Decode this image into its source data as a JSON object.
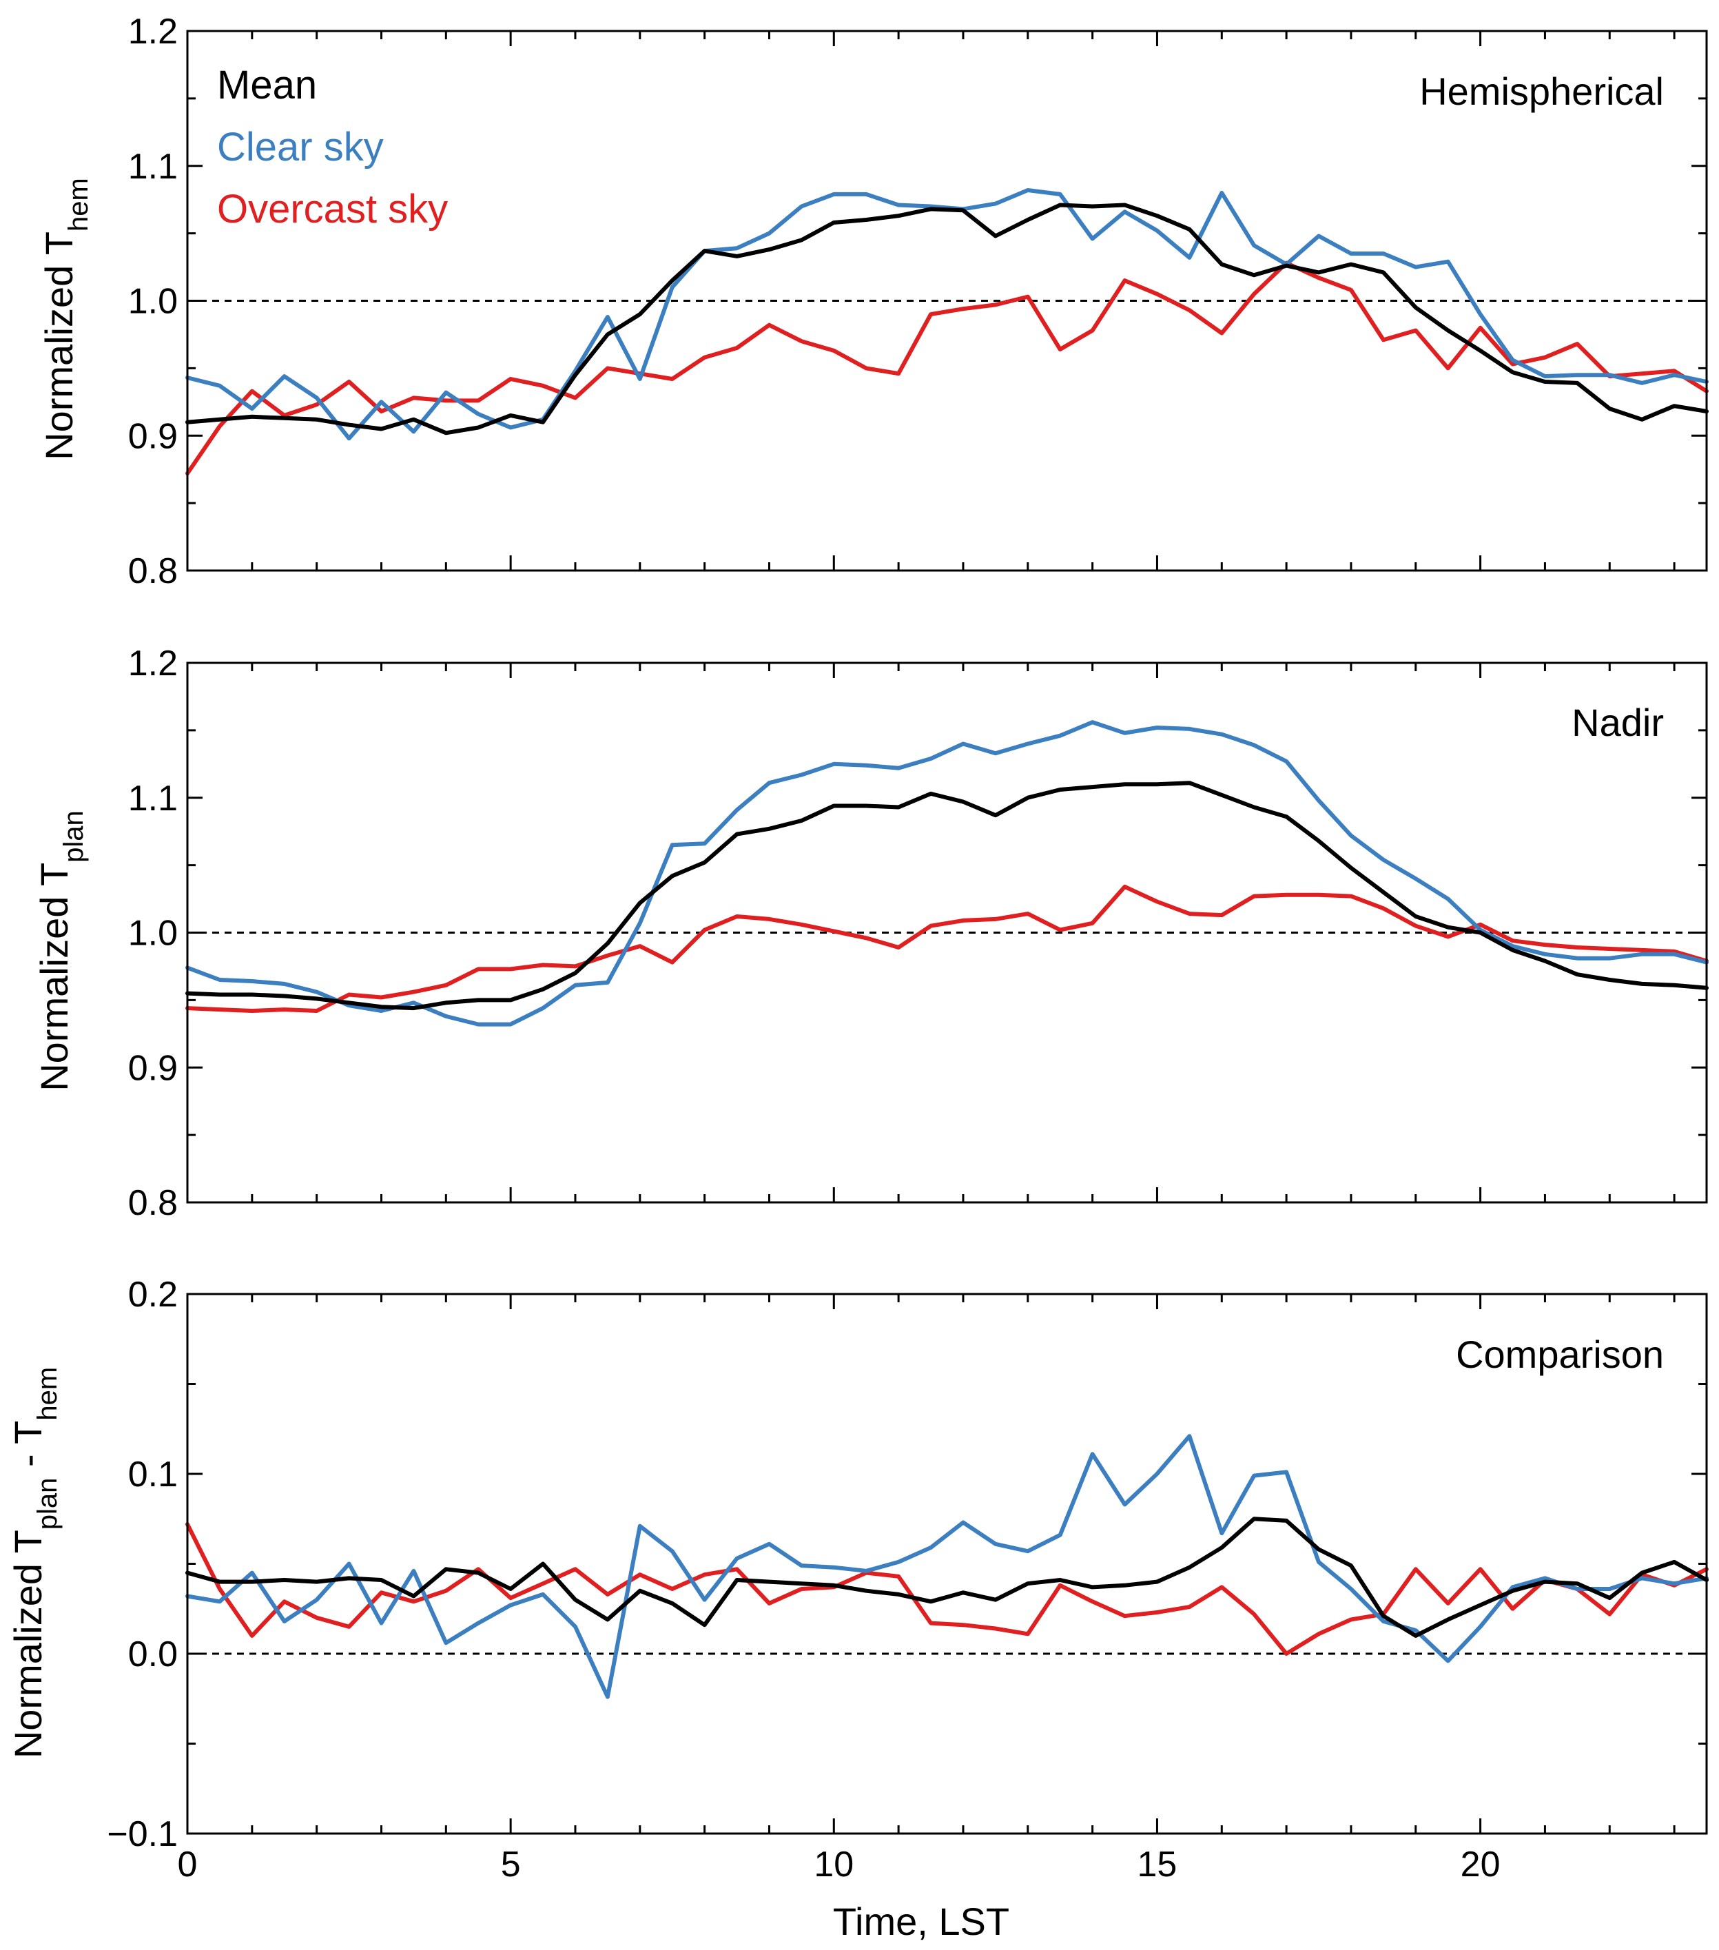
{
  "chart_data": [
    {
      "type": "line",
      "panel_label": "Hemispherical",
      "ylabel": "Normalized T",
      "ylabel_sub": "hem",
      "ylabel_suffix": "",
      "ylabel_sub2": "",
      "xlabel": "",
      "xlim": [
        0,
        23.5
      ],
      "ylim": [
        0.8,
        1.2
      ],
      "yticks": [
        0.8,
        0.9,
        1.0,
        1.1,
        1.2
      ],
      "ytick_labels": [
        "0.8",
        "0.9",
        "1.0",
        "1.1",
        "1.2"
      ],
      "xticks": [
        0,
        5,
        10,
        15,
        20
      ],
      "xtick_labels": [],
      "reference_line": 1.0,
      "legend_placement": "top-left",
      "series": [
        {
          "name": "Mean",
          "color": "#000000",
          "values": [
            0.91,
            0.912,
            0.914,
            0.913,
            0.912,
            0.908,
            0.905,
            0.912,
            0.902,
            0.906,
            0.915,
            0.91,
            0.945,
            0.975,
            0.99,
            1.015,
            1.037,
            1.033,
            1.038,
            1.045,
            1.058,
            1.06,
            1.063,
            1.068,
            1.067,
            1.048,
            1.06,
            1.071,
            1.07,
            1.071,
            1.063,
            1.053,
            1.027,
            1.019,
            1.026,
            1.021,
            1.027,
            1.021,
            0.995,
            0.978,
            0.963,
            0.947,
            0.94,
            0.939,
            0.92,
            0.912,
            0.922,
            0.918
          ]
        },
        {
          "name": "Clear sky",
          "color": "#3b7fc0",
          "values": [
            0.943,
            0.937,
            0.92,
            0.944,
            0.928,
            0.898,
            0.925,
            0.903,
            0.932,
            0.916,
            0.906,
            0.912,
            0.948,
            0.988,
            0.942,
            1.01,
            1.037,
            1.039,
            1.05,
            1.07,
            1.079,
            1.079,
            1.071,
            1.07,
            1.068,
            1.072,
            1.082,
            1.079,
            1.046,
            1.066,
            1.052,
            1.032,
            1.08,
            1.041,
            1.027,
            1.048,
            1.035,
            1.035,
            1.025,
            1.029,
            0.99,
            0.956,
            0.944,
            0.945,
            0.945,
            0.939,
            0.945,
            0.94
          ]
        },
        {
          "name": "Overcast sky",
          "color": "#e02020",
          "values": [
            0.872,
            0.907,
            0.933,
            0.915,
            0.923,
            0.94,
            0.918,
            0.928,
            0.926,
            0.926,
            0.942,
            0.937,
            0.928,
            0.95,
            0.946,
            0.942,
            0.958,
            0.965,
            0.982,
            0.97,
            0.963,
            0.95,
            0.946,
            0.99,
            0.994,
            0.997,
            1.003,
            0.964,
            0.978,
            1.015,
            1.005,
            0.993,
            0.976,
            1.005,
            1.028,
            1.017,
            1.008,
            0.971,
            0.978,
            0.95,
            0.98,
            0.953,
            0.958,
            0.968,
            0.944,
            0.946,
            0.948,
            0.933
          ]
        }
      ]
    },
    {
      "type": "line",
      "panel_label": "Nadir",
      "ylabel": "Normalized T",
      "ylabel_sub": "plan",
      "ylabel_suffix": "",
      "ylabel_sub2": "",
      "xlabel": "",
      "xlim": [
        0,
        23.5
      ],
      "ylim": [
        0.8,
        1.2
      ],
      "yticks": [
        0.8,
        0.9,
        1.0,
        1.1,
        1.2
      ],
      "ytick_labels": [
        "0.8",
        "0.9",
        "1.0",
        "1.1",
        "1.2"
      ],
      "xticks": [
        0,
        5,
        10,
        15,
        20
      ],
      "xtick_labels": [],
      "reference_line": 1.0,
      "series": [
        {
          "name": "Mean",
          "color": "#000000",
          "values": [
            0.955,
            0.954,
            0.954,
            0.953,
            0.951,
            0.948,
            0.945,
            0.944,
            0.948,
            0.95,
            0.95,
            0.958,
            0.97,
            0.992,
            1.022,
            1.042,
            1.052,
            1.073,
            1.077,
            1.083,
            1.094,
            1.094,
            1.093,
            1.103,
            1.097,
            1.087,
            1.1,
            1.106,
            1.108,
            1.11,
            1.11,
            1.111,
            1.102,
            1.093,
            1.086,
            1.068,
            1.048,
            1.03,
            1.012,
            1.004,
            1.0,
            0.987,
            0.979,
            0.969,
            0.965,
            0.962,
            0.961,
            0.959
          ]
        },
        {
          "name": "Clear sky",
          "color": "#3b7fc0",
          "values": [
            0.974,
            0.965,
            0.964,
            0.962,
            0.956,
            0.946,
            0.942,
            0.948,
            0.938,
            0.932,
            0.932,
            0.944,
            0.961,
            0.963,
            1.007,
            1.065,
            1.066,
            1.091,
            1.111,
            1.117,
            1.125,
            1.124,
            1.122,
            1.129,
            1.14,
            1.133,
            1.14,
            1.146,
            1.156,
            1.148,
            1.152,
            1.151,
            1.147,
            1.139,
            1.127,
            1.098,
            1.072,
            1.054,
            1.04,
            1.025,
            1.002,
            0.99,
            0.984,
            0.981,
            0.981,
            0.984,
            0.984,
            0.978
          ]
        },
        {
          "name": "Overcast sky",
          "color": "#e02020",
          "values": [
            0.944,
            0.943,
            0.942,
            0.943,
            0.942,
            0.954,
            0.952,
            0.956,
            0.961,
            0.973,
            0.973,
            0.976,
            0.975,
            0.983,
            0.99,
            0.978,
            1.002,
            1.012,
            1.01,
            1.006,
            1.001,
            0.996,
            0.989,
            1.005,
            1.009,
            1.01,
            1.014,
            1.002,
            1.007,
            1.034,
            1.023,
            1.014,
            1.013,
            1.027,
            1.028,
            1.028,
            1.027,
            1.018,
            1.005,
            0.997,
            1.006,
            0.994,
            0.991,
            0.989,
            0.988,
            0.987,
            0.986,
            0.979
          ]
        }
      ]
    },
    {
      "type": "line",
      "panel_label": "Comparison",
      "ylabel": "Normalized T",
      "ylabel_sub": "plan",
      "ylabel_suffix": " - T",
      "ylabel_sub2": "hem",
      "xlabel": "Time, LST",
      "xlim": [
        0,
        23.5
      ],
      "ylim": [
        -0.1,
        0.2
      ],
      "yticks": [
        -0.1,
        0.0,
        0.1,
        0.2
      ],
      "ytick_labels": [
        "−0.1",
        "0.0",
        "0.1",
        "0.2"
      ],
      "xticks": [
        0,
        5,
        10,
        15,
        20
      ],
      "xtick_labels": [
        "0",
        "5",
        "10",
        "15",
        "20"
      ],
      "reference_line": 0.0,
      "series": [
        {
          "name": "Mean",
          "color": "#000000",
          "values": [
            0.045,
            0.04,
            0.04,
            0.041,
            0.04,
            0.042,
            0.041,
            0.032,
            0.047,
            0.045,
            0.036,
            0.05,
            0.03,
            0.019,
            0.035,
            0.028,
            0.016,
            0.041,
            0.04,
            0.039,
            0.038,
            0.035,
            0.033,
            0.029,
            0.034,
            0.03,
            0.039,
            0.041,
            0.037,
            0.038,
            0.04,
            0.048,
            0.059,
            0.075,
            0.074,
            0.058,
            0.049,
            0.021,
            0.01,
            0.019,
            0.027,
            0.035,
            0.04,
            0.039,
            0.031,
            0.045,
            0.051,
            0.041
          ]
        },
        {
          "name": "Clear sky",
          "color": "#3b7fc0",
          "values": [
            0.032,
            0.029,
            0.045,
            0.018,
            0.03,
            0.05,
            0.017,
            0.046,
            0.006,
            0.017,
            0.027,
            0.033,
            0.015,
            -0.024,
            0.071,
            0.057,
            0.03,
            0.053,
            0.061,
            0.049,
            0.048,
            0.046,
            0.051,
            0.059,
            0.073,
            0.061,
            0.057,
            0.066,
            0.111,
            0.083,
            0.1,
            0.121,
            0.067,
            0.099,
            0.101,
            0.051,
            0.036,
            0.018,
            0.013,
            -0.004,
            0.015,
            0.037,
            0.042,
            0.036,
            0.036,
            0.042,
            0.039,
            0.042
          ]
        },
        {
          "name": "Overcast sky",
          "color": "#e02020",
          "values": [
            0.072,
            0.036,
            0.01,
            0.029,
            0.02,
            0.015,
            0.034,
            0.029,
            0.035,
            0.047,
            0.031,
            0.039,
            0.047,
            0.033,
            0.044,
            0.036,
            0.044,
            0.047,
            0.028,
            0.036,
            0.037,
            0.045,
            0.043,
            0.017,
            0.016,
            0.014,
            0.011,
            0.038,
            0.029,
            0.021,
            0.023,
            0.026,
            0.037,
            0.022,
            0.0,
            0.011,
            0.019,
            0.022,
            0.047,
            0.028,
            0.047,
            0.025,
            0.041,
            0.036,
            0.022,
            0.044,
            0.038,
            0.047
          ]
        }
      ]
    }
  ]
}
